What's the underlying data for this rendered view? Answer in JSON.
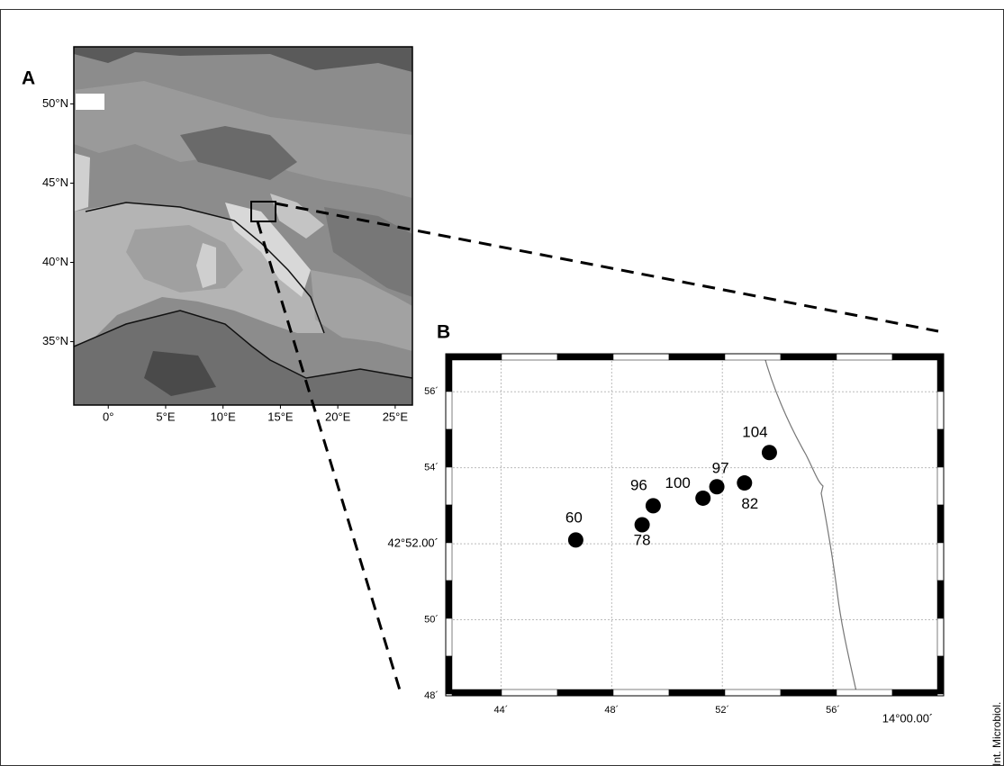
{
  "chart_data": [
    {
      "type": "map",
      "title": "A",
      "xlim": [
        -3,
        26.5
      ],
      "ylim": [
        31,
        53.6
      ],
      "xticks": [
        {
          "value": 0,
          "label": "0°"
        },
        {
          "value": 5,
          "label": "5°E"
        },
        {
          "value": 10,
          "label": "10°E"
        },
        {
          "value": 15,
          "label": "15°E"
        },
        {
          "value": 20,
          "label": "20°E"
        },
        {
          "value": 25,
          "label": "25°E"
        }
      ],
      "yticks": [
        {
          "value": 35,
          "label": "35°N"
        },
        {
          "value": 40,
          "label": "40°N"
        },
        {
          "value": 45,
          "label": "45°N"
        },
        {
          "value": 50,
          "label": "50°N"
        }
      ]
    },
    {
      "type": "scatter",
      "title": "B",
      "xlim": [
        42,
        60
      ],
      "ylim": [
        48,
        57
      ],
      "xticks": [
        {
          "value": 44,
          "label": "44´"
        },
        {
          "value": 48,
          "label": "48´"
        },
        {
          "value": 52,
          "label": "52´"
        },
        {
          "value": 56,
          "label": "56´"
        },
        {
          "value": 60,
          "label": "14°00.00´"
        }
      ],
      "yticks": [
        {
          "value": 48,
          "label": "48´"
        },
        {
          "value": 50,
          "label": "50´"
        },
        {
          "value": 52,
          "label": "42°52.00´"
        },
        {
          "value": 54,
          "label": "54´"
        },
        {
          "value": 56,
          "label": "56´"
        }
      ],
      "grid": true,
      "color": "#000000",
      "labels": [
        "60",
        "78",
        "96",
        "100",
        "97",
        "82",
        "104"
      ],
      "x": [
        46.7,
        49.1,
        49.5,
        51.3,
        51.8,
        52.8,
        53.7
      ],
      "y": [
        52.1,
        52.5,
        53.0,
        53.2,
        53.5,
        53.6,
        54.4
      ]
    }
  ],
  "source": "Int. Microbiol."
}
